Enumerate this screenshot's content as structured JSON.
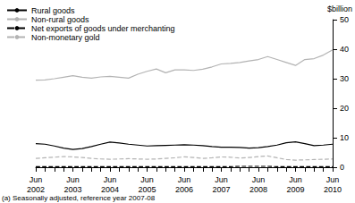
{
  "chart_data": {
    "type": "line",
    "ylabel": "$billion",
    "footnote": "(a) Seasonally adjusted, reference year 2007-08",
    "categories": [
      "Jun\n2002",
      null,
      null,
      null,
      "Jun\n2003",
      null,
      null,
      null,
      "Jun\n2004",
      null,
      null,
      null,
      "Jun\n2005",
      null,
      null,
      null,
      "Jun\n2006",
      null,
      null,
      null,
      "Jun\n2007",
      null,
      null,
      null,
      "Jun\n2008",
      null,
      null,
      null,
      "Jun\n2009",
      null,
      null,
      null,
      "Jun\n2010"
    ],
    "series": [
      {
        "name": "Rural goods",
        "color": "#000000",
        "line_style": "solid",
        "values": [
          8,
          7.8,
          7.2,
          6.5,
          6,
          6.3,
          7,
          7.8,
          8.5,
          8.2,
          7.8,
          7.5,
          7.2,
          7.3,
          7.4,
          7.5,
          7.6,
          7.5,
          7.3,
          7,
          6.8,
          6.8,
          6.7,
          6.5,
          6.6,
          7,
          7.5,
          8.3,
          8.6,
          8,
          7.3,
          7.5,
          7.8
        ]
      },
      {
        "name": "Non-rural goods",
        "color": "#b3b3b3",
        "line_style": "solid",
        "values": [
          29.5,
          29.6,
          30,
          30.5,
          31,
          30.5,
          30.2,
          30.6,
          30.8,
          30.5,
          30.2,
          31.5,
          32.5,
          33.3,
          32,
          33,
          33,
          32.8,
          33.2,
          34,
          35,
          35.2,
          35.5,
          36,
          36.5,
          37.5,
          36.5,
          35.5,
          34.5,
          36.5,
          36.8,
          38,
          39.8
        ]
      },
      {
        "name": "Net exports of goods under merchanting",
        "color": "#000000",
        "line_style": "dashed",
        "values": [
          0.2,
          0.2,
          0.2,
          0.2,
          0.2,
          0.2,
          0.2,
          0.2,
          0.2,
          0.2,
          0.2,
          0.2,
          0.2,
          0.2,
          0.2,
          0.2,
          0.2,
          0.2,
          0.2,
          0.2,
          0.2,
          0.2,
          0.3,
          0.3,
          0.3,
          0.3,
          0.2,
          0.2,
          0.2,
          0.2,
          0.2,
          0.2,
          0.2
        ]
      },
      {
        "name": "Non-monetary gold",
        "color": "#b3b3b3",
        "line_style": "dashed",
        "values": [
          3,
          3.2,
          3.4,
          3.6,
          3.5,
          3.3,
          3,
          2.8,
          2.7,
          2.8,
          2.9,
          2.8,
          2.7,
          2.8,
          3,
          3.2,
          3.5,
          3.3,
          3,
          3.2,
          3.5,
          3.4,
          3.1,
          3.3,
          3.6,
          3.8,
          3.2,
          2.6,
          2.4,
          2.5,
          2.6,
          2.7,
          2.8
        ]
      }
    ],
    "ylim": [
      0,
      50
    ],
    "yticks": [
      0,
      10,
      20,
      30,
      40,
      50
    ],
    "grid": false,
    "legend": "top-left"
  }
}
